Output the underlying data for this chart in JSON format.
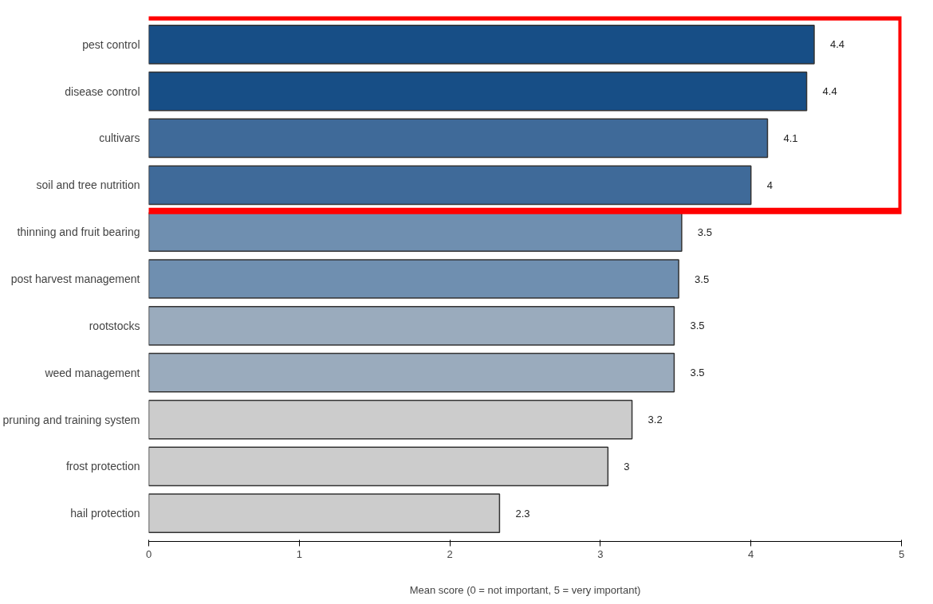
{
  "chart_data": {
    "type": "bar",
    "orientation": "horizontal",
    "xlabel": "Mean score (0 = not important, 5 = very important)",
    "categories": [
      "pest control",
      "disease control",
      "cultivars",
      "soil and tree nutrition",
      "thinning and fruit bearing",
      "post harvest management",
      "rootstocks",
      "weed management",
      "pruning and training system",
      "frost protection",
      "hail protection"
    ],
    "values": [
      4.42,
      4.37,
      4.11,
      4.0,
      3.54,
      3.52,
      3.49,
      3.49,
      3.21,
      3.05,
      2.33
    ],
    "value_labels": [
      "4.4",
      "4.4",
      "4.1",
      "4",
      "3.5",
      "3.5",
      "3.5",
      "3.5",
      "3.2",
      "3",
      "2.3"
    ],
    "colors": [
      "#174e86",
      "#174e86",
      "#3f6a99",
      "#3f6a99",
      "#6f8fb0",
      "#6f8fb0",
      "#9aabbd",
      "#9aabbd",
      "#cccccc",
      "#cccccc",
      "#cccccc"
    ],
    "xlim": [
      0,
      5
    ],
    "xticks": [
      0,
      1,
      2,
      3,
      4,
      5
    ],
    "grid": false
  }
}
